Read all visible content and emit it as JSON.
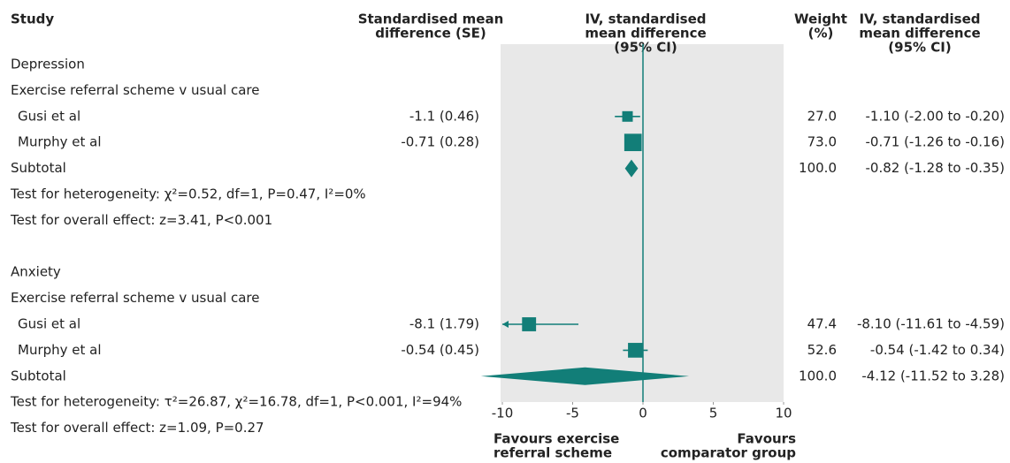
{
  "chart_data": {
    "type": "forest",
    "headers": {
      "study": "Study",
      "smd": [
        "Standardised mean",
        "difference (SE)"
      ],
      "plot": [
        "IV, standardised",
        "mean difference",
        "(95% CI)"
      ],
      "weight": [
        "Weight",
        "(%)"
      ],
      "ci": [
        "IV, standardised",
        "mean difference",
        "(95% CI)"
      ]
    },
    "groups": [
      {
        "title": "Depression",
        "subgroup": "Exercise referral scheme v usual care",
        "studies": [
          {
            "name": "Gusi et al",
            "smd": "-1.1 (0.46)",
            "weight": {
              "value": 27,
              "label": "27.0"
            },
            "estimate": -1.1,
            "lower": -2.0,
            "upper": -0.2,
            "ci_label": "-1.10 (-2.00 to -0.20)"
          },
          {
            "name": "Murphy et al",
            "smd": "-0.71 (0.28)",
            "weight": {
              "value": 73,
              "label": "73.0"
            },
            "estimate": -0.71,
            "lower": -1.26,
            "upper": -0.16,
            "ci_label": "-0.71 (-1.26 to -0.16)"
          }
        ],
        "subtotal": {
          "name": "Subtotal",
          "weight": {
            "value": 100,
            "label": "100.0"
          },
          "estimate": -0.82,
          "lower": -1.28,
          "upper": -0.35,
          "ci_label": "-0.82 (-1.28 to -0.35)"
        },
        "heterogeneity": "Test for heterogeneity: χ²=0.52, df=1, P=0.47, I²=0%",
        "overall": "Test for overall effect: z=3.41, P<0.001"
      },
      {
        "title": "Anxiety",
        "subgroup": "Exercise referral scheme v usual care",
        "studies": [
          {
            "name": "Gusi et al",
            "smd": "-8.1 (1.79)",
            "weight": {
              "value": 47.4,
              "label": "47.4"
            },
            "estimate": -8.1,
            "lower": -11.61,
            "upper": -4.59,
            "ci_label": "-8.10 (-11.61 to -4.59)"
          },
          {
            "name": "Murphy et al",
            "smd": "-0.54 (0.45)",
            "weight": {
              "value": 52.6,
              "label": "52.6"
            },
            "estimate": -0.54,
            "lower": -1.42,
            "upper": 0.34,
            "ci_label": "-0.54 (-1.42 to 0.34)"
          }
        ],
        "subtotal": {
          "name": "Subtotal",
          "weight": {
            "value": 100,
            "label": "100.0"
          },
          "estimate": -4.12,
          "lower": -11.52,
          "upper": 3.28,
          "ci_label": "-4.12 (-11.52 to 3.28)"
        },
        "heterogeneity": "Test for heterogeneity: τ²=26.87, χ²=16.78, df=1, P<0.001, I²=94%",
        "overall": "Test for overall effect: z=1.09, P=0.27"
      }
    ],
    "xlim": [
      -10,
      10
    ],
    "xticks": [
      -10,
      -5,
      0,
      5,
      10
    ],
    "x_left_label": [
      "Favours exercise",
      "referral scheme"
    ],
    "x_right_label": [
      "Favours",
      "comparator group"
    ],
    "color": "#127e78",
    "background": "#e8e8e8"
  }
}
